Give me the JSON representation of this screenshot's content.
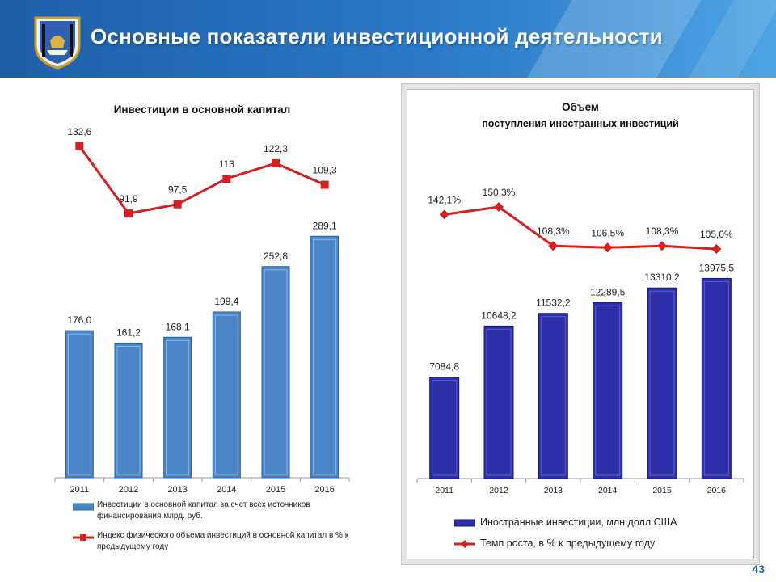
{
  "header": {
    "title": "Основные показатели инвестиционной деятельности",
    "accent_color": "#2a78c6"
  },
  "page_number": "43",
  "left_chart": {
    "title": "Инвестиции в основной капитал",
    "legend_bar": "Инвестиции в основной капитал за счет всех источников финансирования млрд. руб.",
    "legend_line": "Индекс физического объема инвестиций в основной капитал в % к предыдущему году"
  },
  "right_chart": {
    "title_line1": "Объем",
    "title_line2": "поступления иностранных инвестиций",
    "legend_bar": "Иностранные инвестиции, млн.долл.США",
    "legend_line": "Темп роста, в % к предыдущему году"
  },
  "chart_data": [
    {
      "type": "bar",
      "title": "Инвестиции в основной капитал",
      "categories": [
        "2011",
        "2012",
        "2013",
        "2014",
        "2015",
        "2016"
      ],
      "series": [
        {
          "name": "Инвестиции в основной капитал за счет всех источников финансирования млрд. руб.",
          "values": [
            176.0,
            161.2,
            168.1,
            198.4,
            252.8,
            289.1
          ],
          "labels": [
            "176,0",
            "161,2",
            "168,1",
            "198,4",
            "252,8",
            "289,1"
          ],
          "color": "#4a86c8"
        },
        {
          "name": "Индекс физического объема инвестиций в основной капитал в % к предыдущему году",
          "type": "line",
          "values": [
            132.6,
            91.9,
            97.5,
            113,
            122.3,
            109.3
          ],
          "labels": [
            "132,6",
            "91,9",
            "97,5",
            "113",
            "122,3",
            "109,3"
          ],
          "color": "#d42020"
        }
      ],
      "legend": "bottom"
    },
    {
      "type": "bar",
      "title": "Объем поступления иностранных инвестиций",
      "categories": [
        "2011",
        "2012",
        "2013",
        "2014",
        "2015",
        "2016"
      ],
      "series": [
        {
          "name": "Иностранные инвестиции, млн.долл.США",
          "values": [
            7084.8,
            10648.2,
            11532.2,
            12289.5,
            13310.2,
            13975.5
          ],
          "labels": [
            "7084,8",
            "10648,2",
            "11532,2",
            "12289,5",
            "13310,2",
            "13975,5"
          ],
          "color": "#2e2ea8"
        },
        {
          "name": "Темп роста, в % к предыдущему году",
          "type": "line",
          "values": [
            142.1,
            150.3,
            108.3,
            106.5,
            108.3,
            105.0
          ],
          "labels": [
            "142,1%",
            "150,3%",
            "108,3%",
            "106,5%",
            "108,3%",
            "105,0%"
          ],
          "color": "#d42020"
        }
      ],
      "legend": "bottom"
    }
  ]
}
